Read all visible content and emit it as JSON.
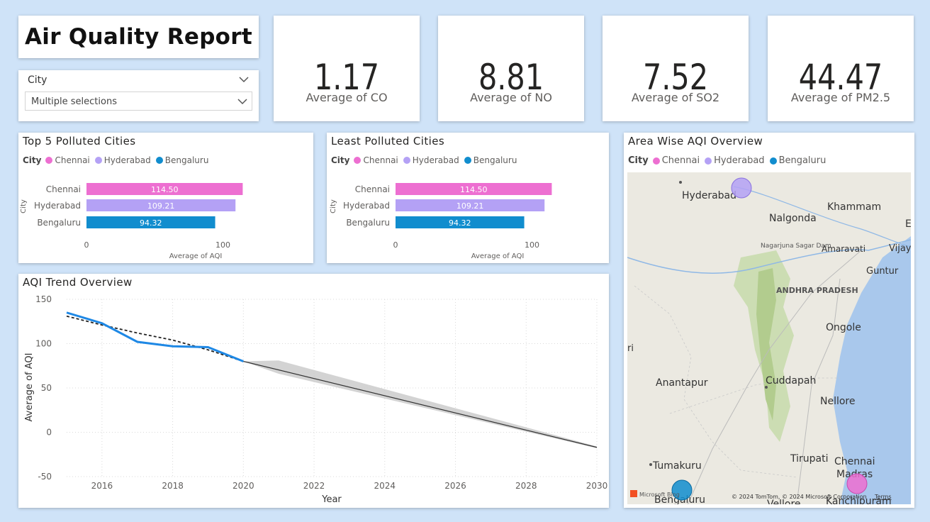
{
  "header": {
    "title": "Air Quality Report"
  },
  "slicer": {
    "label": "City",
    "value": "Multiple selections"
  },
  "kpis": [
    {
      "value": "1.17",
      "label": "Average of CO"
    },
    {
      "value": "8.81",
      "label": "Average of NO"
    },
    {
      "value": "7.52",
      "label": "Average of SO2"
    },
    {
      "value": "44.47",
      "label": "Average of PM2.5"
    }
  ],
  "colors": {
    "chennai": "#ed6fd1",
    "hyderabad": "#b4a1f5",
    "bengaluru": "#118dce",
    "trend_line": "#1e88e5"
  },
  "legend": {
    "title": "City",
    "items": [
      "Chennai",
      "Hyderabad",
      "Bengaluru"
    ]
  },
  "top5": {
    "title": "Top 5 Polluted Cities",
    "xlabel": "Average of AQI",
    "ylabel": "City",
    "ticks": [
      "0",
      "100"
    ]
  },
  "least": {
    "title": "Least Polluted Cities",
    "xlabel": "Average of AQI",
    "ylabel": "City",
    "ticks": [
      "0",
      "100"
    ]
  },
  "trend": {
    "title": "AQI Trend Overview",
    "xlabel": "Year",
    "ylabel": "Average of AQI"
  },
  "map": {
    "title": "Area Wise AQI Overview",
    "labels": [
      "Hyderabad",
      "Khammam",
      "Nalgonda",
      "Nagarjuna Sagar Dam",
      "Amaravati",
      "Vijay",
      "Guntur",
      "ANDHRA PRADESH",
      "Ongole",
      "Anantapur",
      "Cuddapah",
      "Nellore",
      "Tirupati",
      "Chennai",
      "Madras",
      "Tumakuru",
      "Bengaluru",
      "Vellore",
      "Kanchipuram",
      "E",
      "ri"
    ],
    "attribution": "© 2024 TomTom, © 2024 Microsoft Corporation",
    "terms": "Terms",
    "bing": "Microsoft Bing"
  },
  "chart_data": [
    {
      "type": "bar",
      "title": "Top 5 Polluted Cities",
      "categories": [
        "Chennai",
        "Hyderabad",
        "Bengaluru"
      ],
      "values": [
        114.5,
        109.21,
        94.32
      ],
      "labels": [
        "114.50",
        "109.21",
        "94.32"
      ],
      "xlabel": "Average of AQI",
      "ylabel": "City",
      "xlim": [
        0,
        120
      ]
    },
    {
      "type": "bar",
      "title": "Least Polluted Cities",
      "categories": [
        "Chennai",
        "Hyderabad",
        "Bengaluru"
      ],
      "values": [
        114.5,
        109.21,
        94.32
      ],
      "labels": [
        "114.50",
        "109.21",
        "94.32"
      ],
      "xlabel": "Average of AQI",
      "ylabel": "City",
      "xlim": [
        0,
        120
      ]
    },
    {
      "type": "line",
      "title": "AQI Trend Overview",
      "xlabel": "Year",
      "ylabel": "Average of AQI",
      "xlim": [
        2015,
        2030
      ],
      "ylim": [
        -50,
        150
      ],
      "xticks": [
        2016,
        2018,
        2020,
        2022,
        2024,
        2026,
        2028,
        2030
      ],
      "yticks": [
        -50,
        0,
        50,
        100,
        150
      ],
      "series": [
        {
          "x": [
            2015,
            2016,
            2017,
            2018,
            2019,
            2020
          ],
          "values": [
            135,
            123,
            102,
            97,
            96,
            80
          ]
        },
        {
          "x": [
            2015,
            2016,
            2017,
            2018,
            2019,
            2020
          ],
          "values": [
            131,
            121,
            112,
            104,
            93,
            80
          ]
        },
        {
          "x": [
            2020,
            2030
          ],
          "values": [
            80,
            -17
          ]
        }
      ],
      "forecast_band": {
        "x": [
          2020,
          2021,
          2030
        ],
        "upper": [
          80,
          81,
          -16
        ],
        "lower": [
          80,
          66,
          -18
        ]
      }
    }
  ]
}
